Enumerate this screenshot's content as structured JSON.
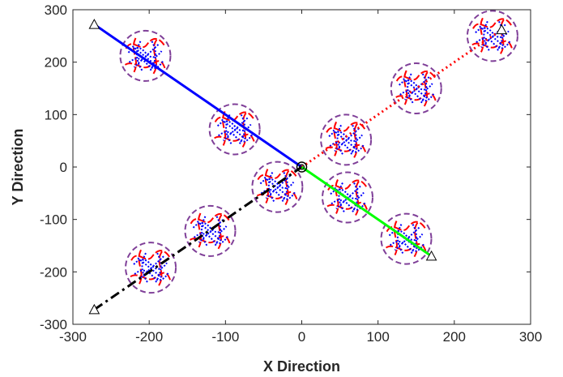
{
  "chart_data": {
    "type": "line",
    "title": "",
    "xlabel": "X Direction",
    "ylabel": "Y Direction",
    "xlim": [
      -300,
      300
    ],
    "ylim": [
      -300,
      300
    ],
    "xticks": [
      -300,
      -200,
      -100,
      0,
      100,
      200,
      300
    ],
    "yticks": [
      -300,
      -200,
      -100,
      0,
      100,
      200,
      300
    ],
    "grid": false,
    "legend": "none",
    "series": [
      {
        "color": "#0000ff",
        "style": "solid",
        "x": [
          -272,
          0
        ],
        "y": [
          272,
          0
        ]
      },
      {
        "color": "#ff0000",
        "style": "dotted",
        "x": [
          0,
          262
        ],
        "y": [
          0,
          262
        ]
      },
      {
        "color": "#000000",
        "style": "dash-dot",
        "x": [
          -272,
          0
        ],
        "y": [
          -272,
          0
        ]
      },
      {
        "color": "#00ff00",
        "style": "solid",
        "x": [
          0,
          170
        ],
        "y": [
          0,
          -170
        ]
      }
    ],
    "start_markers": {
      "shape": "triangle",
      "points": [
        {
          "x": -272,
          "y": 272
        },
        {
          "x": -272,
          "y": -272
        },
        {
          "x": 170,
          "y": -170
        },
        {
          "x": 262,
          "y": 262
        }
      ]
    },
    "end_marker": {
      "shape": "circle",
      "x": 0,
      "y": 0
    },
    "uav_formations": {
      "safety_circle_color": "#7f3f98",
      "actual_path_color": "#ff0000",
      "reference_path_color": "#0000ff",
      "centers": [
        {
          "x": -205,
          "y": 212
        },
        {
          "x": -88,
          "y": 72
        },
        {
          "x": 58,
          "y": 52
        },
        {
          "x": 150,
          "y": 150
        },
        {
          "x": 250,
          "y": 250
        },
        {
          "x": -32,
          "y": -38
        },
        {
          "x": -120,
          "y": -122
        },
        {
          "x": -198,
          "y": -192
        },
        {
          "x": 60,
          "y": -58
        },
        {
          "x": 137,
          "y": -137
        }
      ]
    }
  }
}
